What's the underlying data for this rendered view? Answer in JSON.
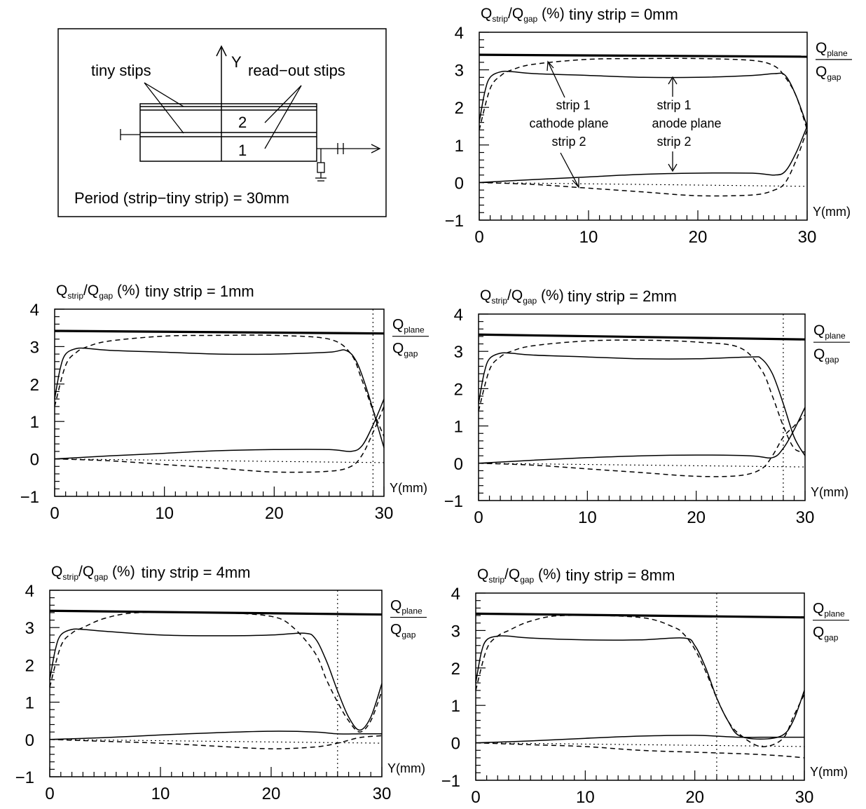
{
  "diagram": {
    "label_tiny": "tiny stips",
    "label_readout": "read−out stips",
    "label_y": "Y",
    "label_2": "2",
    "label_1": "1",
    "period": "Period (strip−tiny strip) = 30mm"
  },
  "annotations": {
    "strip1_left": "strip 1",
    "cathode_plane": "cathode plane",
    "strip2_left": "strip 2",
    "strip1_right": "strip 1",
    "anode_plane": "anode plane",
    "strip2_right": "strip 2"
  },
  "right_label": {
    "num": "Q",
    "num_sub": "plane",
    "den": "Q",
    "den_sub": "gap"
  },
  "chart_data": [
    {
      "type": "line",
      "title": "tiny strip = 0mm",
      "ylabel": {
        "main": "Q",
        "sub1": "strip",
        "mid": "/Q",
        "sub2": "gap",
        "unit": "(%)"
      },
      "xlabel": "Y(mm)",
      "xlim": [
        0,
        30
      ],
      "ylim": [
        -1,
        4
      ],
      "xticks": [
        "0",
        "10",
        "20",
        "30"
      ],
      "yticks": [
        "−1",
        "0",
        "1",
        "2",
        "3",
        "4"
      ],
      "tiny_strip_mm": 0,
      "plane_over_gap": [
        3.4,
        3.35
      ],
      "series": [
        {
          "style": "solid",
          "x": [
            0,
            0.5,
            1,
            2,
            3,
            5,
            10,
            15,
            20,
            25,
            27,
            28,
            29,
            30
          ],
          "y": [
            1.6,
            2.4,
            2.8,
            2.95,
            2.95,
            2.9,
            2.85,
            2.8,
            2.8,
            2.85,
            2.9,
            2.85,
            2.3,
            1.5
          ]
        },
        {
          "style": "solid",
          "x": [
            0,
            5,
            10,
            15,
            20,
            25,
            27,
            28,
            29,
            30
          ],
          "y": [
            0.0,
            0.08,
            0.15,
            0.22,
            0.25,
            0.25,
            0.2,
            0.3,
            0.8,
            1.5
          ]
        },
        {
          "style": "dashed",
          "x": [
            0,
            1,
            2,
            3,
            5,
            10,
            15,
            20,
            25,
            27,
            28,
            29,
            30
          ],
          "y": [
            1.4,
            2.5,
            2.85,
            3.0,
            3.15,
            3.28,
            3.3,
            3.3,
            3.25,
            3.1,
            2.8,
            2.3,
            1.4
          ]
        },
        {
          "style": "dashed",
          "x": [
            0,
            5,
            10,
            15,
            20,
            25,
            27,
            28,
            29,
            30
          ],
          "y": [
            0.0,
            -0.05,
            -0.15,
            -0.25,
            -0.35,
            -0.33,
            -0.2,
            0.0,
            0.6,
            1.4
          ]
        },
        {
          "style": "dotted",
          "x": [
            0,
            30
          ],
          "y": [
            0,
            -0.1
          ]
        }
      ]
    },
    {
      "type": "line",
      "title": "tiny strip = 1mm",
      "ylabel": {
        "main": "Q",
        "sub1": "strip",
        "mid": "/Q",
        "sub2": "gap",
        "unit": "(%)"
      },
      "xlabel": "Y(mm)",
      "xlim": [
        0,
        30
      ],
      "ylim": [
        -1,
        4
      ],
      "xticks": [
        "0",
        "10",
        "20",
        "30"
      ],
      "yticks": [
        "−1",
        "0",
        "1",
        "2",
        "3",
        "4"
      ],
      "tiny_strip_mm": 1,
      "plane_over_gap": [
        3.42,
        3.35
      ],
      "series": [
        {
          "style": "solid",
          "x": [
            0,
            0.5,
            1,
            2,
            3,
            5,
            10,
            15,
            20,
            25,
            26.5,
            27.5,
            28.5,
            29.5,
            30
          ],
          "y": [
            1.6,
            2.4,
            2.8,
            2.95,
            2.95,
            2.9,
            2.85,
            2.8,
            2.8,
            2.85,
            2.9,
            2.6,
            1.8,
            0.8,
            0.3
          ]
        },
        {
          "style": "solid",
          "x": [
            0,
            5,
            10,
            15,
            20,
            25,
            27,
            28,
            29,
            30
          ],
          "y": [
            0.0,
            0.08,
            0.15,
            0.22,
            0.25,
            0.25,
            0.2,
            0.35,
            0.9,
            1.6
          ]
        },
        {
          "style": "dashed",
          "x": [
            0,
            1,
            2,
            3,
            5,
            10,
            15,
            20,
            25,
            27,
            28,
            29,
            30
          ],
          "y": [
            1.4,
            2.5,
            2.85,
            3.0,
            3.15,
            3.28,
            3.3,
            3.3,
            3.2,
            2.8,
            2.1,
            1.3,
            0.6
          ]
        },
        {
          "style": "dashed",
          "x": [
            0,
            5,
            10,
            15,
            20,
            25,
            27,
            28,
            29,
            30
          ],
          "y": [
            0.0,
            -0.05,
            -0.15,
            -0.25,
            -0.35,
            -0.33,
            -0.2,
            0.1,
            0.7,
            1.4
          ]
        },
        {
          "style": "dotted",
          "x": [
            0,
            30
          ],
          "y": [
            0,
            -0.1
          ]
        }
      ]
    },
    {
      "type": "line",
      "title": "tiny strip = 2mm",
      "ylabel": {
        "main": "Q",
        "sub1": "strip",
        "mid": "/Q",
        "sub2": "gap",
        "unit": "(%)"
      },
      "xlabel": "Y(mm)",
      "xlim": [
        0,
        30
      ],
      "ylim": [
        -1,
        4
      ],
      "xticks": [
        "0",
        "10",
        "20",
        "30"
      ],
      "yticks": [
        "−1",
        "0",
        "1",
        "2",
        "3",
        "4"
      ],
      "tiny_strip_mm": 2,
      "plane_over_gap": [
        3.45,
        3.32
      ],
      "series": [
        {
          "style": "solid",
          "x": [
            0,
            0.5,
            1,
            2,
            3,
            5,
            10,
            15,
            20,
            25,
            26,
            27,
            28,
            29,
            30
          ],
          "y": [
            1.6,
            2.4,
            2.8,
            2.95,
            2.95,
            2.9,
            2.85,
            2.8,
            2.8,
            2.85,
            2.8,
            2.4,
            1.6,
            0.7,
            0.2
          ]
        },
        {
          "style": "solid",
          "x": [
            0,
            5,
            10,
            15,
            20,
            25,
            27,
            28,
            29,
            30
          ],
          "y": [
            0.0,
            0.08,
            0.15,
            0.2,
            0.22,
            0.2,
            0.15,
            0.4,
            0.9,
            1.5
          ]
        },
        {
          "style": "dashed",
          "x": [
            0,
            1,
            2,
            3,
            5,
            10,
            15,
            20,
            24,
            26,
            27,
            28,
            29,
            30
          ],
          "y": [
            1.4,
            2.5,
            2.85,
            3.0,
            3.15,
            3.28,
            3.3,
            3.25,
            3.1,
            2.5,
            1.8,
            1.0,
            0.4,
            0.3
          ]
        },
        {
          "style": "dashed",
          "x": [
            0,
            5,
            10,
            15,
            20,
            24,
            26,
            27,
            28,
            29,
            30
          ],
          "y": [
            0.0,
            -0.05,
            -0.15,
            -0.25,
            -0.35,
            -0.33,
            -0.15,
            0.2,
            0.7,
            1.0,
            1.3
          ]
        },
        {
          "style": "dotted",
          "x": [
            0,
            30
          ],
          "y": [
            0,
            -0.1
          ]
        }
      ]
    },
    {
      "type": "line",
      "title": "tiny strip = 4mm",
      "ylabel": {
        "main": "Q",
        "sub1": "strip",
        "mid": "/Q",
        "sub2": "gap",
        "unit": "(%)"
      },
      "xlabel": "Y(mm)",
      "xlim": [
        0,
        30
      ],
      "ylim": [
        -1,
        4
      ],
      "xticks": [
        "0",
        "10",
        "20",
        "30"
      ],
      "yticks": [
        "−1",
        "0",
        "1",
        "2",
        "3",
        "4"
      ],
      "tiny_strip_mm": 4,
      "plane_over_gap": [
        3.45,
        3.35
      ],
      "series": [
        {
          "style": "solid",
          "x": [
            0,
            0.5,
            1,
            2,
            3,
            5,
            10,
            15,
            20,
            23,
            24,
            25,
            26,
            27,
            28,
            29,
            30
          ],
          "y": [
            1.6,
            2.4,
            2.8,
            2.95,
            2.95,
            2.9,
            2.8,
            2.78,
            2.8,
            2.85,
            2.7,
            2.1,
            1.3,
            0.6,
            0.25,
            0.6,
            1.5
          ]
        },
        {
          "style": "solid",
          "x": [
            0,
            5,
            10,
            15,
            20,
            24,
            26,
            28,
            30
          ],
          "y": [
            0.0,
            0.05,
            0.12,
            0.18,
            0.22,
            0.2,
            0.15,
            0.15,
            0.15
          ]
        },
        {
          "style": "dashed",
          "x": [
            0,
            1,
            2,
            3,
            5,
            8,
            15,
            20,
            22,
            24,
            25,
            26,
            27,
            28,
            29,
            30
          ],
          "y": [
            1.4,
            2.5,
            2.85,
            3.0,
            3.25,
            3.4,
            3.4,
            3.3,
            3.0,
            2.3,
            1.6,
            1.0,
            0.5,
            0.2,
            0.5,
            1.3
          ]
        },
        {
          "style": "dashed",
          "x": [
            0,
            5,
            10,
            15,
            20,
            24,
            26,
            28,
            30
          ],
          "y": [
            0.0,
            -0.05,
            -0.1,
            -0.18,
            -0.25,
            -0.2,
            -0.1,
            0.05,
            0.1
          ]
        },
        {
          "style": "dotted",
          "x": [
            0,
            30
          ],
          "y": [
            0,
            -0.1
          ]
        }
      ]
    },
    {
      "type": "line",
      "title": "tiny strip = 8mm",
      "ylabel": {
        "main": "Q",
        "sub1": "strip",
        "mid": "/Q",
        "sub2": "gap",
        "unit": "(%)"
      },
      "xlabel": "Y(mm)",
      "xlim": [
        0,
        30
      ],
      "ylim": [
        -1,
        4
      ],
      "xticks": [
        "0",
        "10",
        "20",
        "30"
      ],
      "yticks": [
        "−1",
        "0",
        "1",
        "2",
        "3",
        "4"
      ],
      "tiny_strip_mm": 8,
      "plane_over_gap": [
        3.45,
        3.35
      ],
      "series": [
        {
          "style": "solid",
          "x": [
            0,
            0.5,
            1,
            2,
            3,
            5,
            10,
            15,
            19,
            20,
            21,
            22,
            23,
            24,
            26,
            28,
            29,
            30
          ],
          "y": [
            1.6,
            2.4,
            2.75,
            2.85,
            2.85,
            2.8,
            2.75,
            2.75,
            2.8,
            2.6,
            2.0,
            1.2,
            0.6,
            0.2,
            0.1,
            0.2,
            0.6,
            1.4
          ]
        },
        {
          "style": "solid",
          "x": [
            0,
            5,
            10,
            15,
            20,
            24,
            26,
            28,
            30
          ],
          "y": [
            0.0,
            0.05,
            0.12,
            0.18,
            0.2,
            0.15,
            0.15,
            0.15,
            0.15
          ]
        },
        {
          "style": "dashed",
          "x": [
            0,
            1,
            2,
            3,
            5,
            8,
            15,
            18,
            19,
            20,
            21,
            22,
            23,
            24,
            26,
            28,
            29,
            30
          ],
          "y": [
            1.4,
            2.5,
            2.85,
            3.0,
            3.25,
            3.4,
            3.35,
            3.1,
            2.9,
            2.5,
            1.9,
            1.2,
            0.6,
            0.25,
            -0.1,
            0.1,
            0.7,
            1.3
          ]
        },
        {
          "style": "dashed",
          "x": [
            0,
            5,
            10,
            15,
            20,
            25,
            28,
            30
          ],
          "y": [
            0.0,
            -0.05,
            -0.1,
            -0.2,
            -0.25,
            -0.3,
            -0.35,
            -0.4
          ]
        },
        {
          "style": "dotted",
          "x": [
            0,
            30
          ],
          "y": [
            0,
            -0.1
          ]
        }
      ]
    }
  ]
}
